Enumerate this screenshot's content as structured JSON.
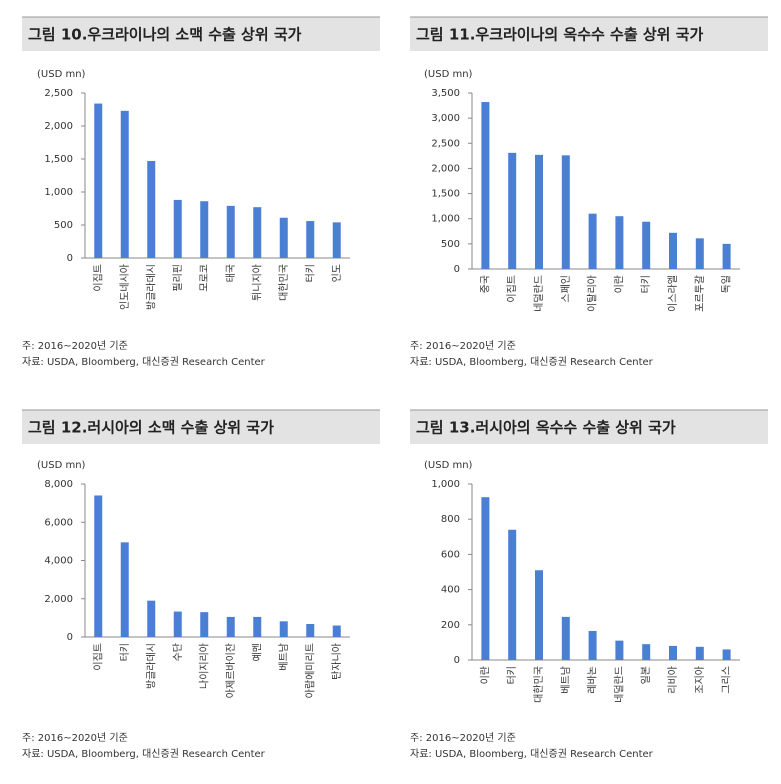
{
  "chart_data": [
    {
      "type": "bar",
      "title": "그림 10.우크라이나의 소맥 수출 상위 국가",
      "y_label": "(USD mn)",
      "categories": [
        "이집트",
        "인도네시아",
        "방글라데시",
        "필리핀",
        "모로코",
        "태국",
        "튀니지아",
        "대한민국",
        "터키",
        "인도"
      ],
      "values": [
        2340,
        2230,
        1470,
        880,
        860,
        790,
        770,
        610,
        560,
        540
      ],
      "color": "#4a7fd3",
      "ylim": [
        0,
        2500
      ],
      "yticks": [
        0,
        500,
        {
          "value": 1000,
          "label": "1,000"
        },
        {
          "value": 1500,
          "label": "1,500"
        },
        {
          "value": 2000,
          "label": "2,000"
        },
        {
          "value": 2500,
          "label": "2,500"
        }
      ],
      "note": "주: 2016~2020년 기준",
      "source": "자료: USDA, Bloomberg, 대신증권 Research Center"
    },
    {
      "type": "bar",
      "title": "그림 11.우크라이나의 옥수수 수출 상위 국가",
      "y_label": "(USD mn)",
      "categories": [
        "중국",
        "이집트",
        "네덜란드",
        "스페인",
        "이탈리아",
        "이란",
        "터키",
        "이스라엘",
        "포르투갈",
        "독일"
      ],
      "values": [
        3320,
        2310,
        2270,
        2260,
        1100,
        1050,
        940,
        720,
        610,
        500
      ],
      "color": "#4a7fd3",
      "ylim": [
        0,
        3500
      ],
      "yticks": [
        0,
        500,
        {
          "value": 1000,
          "label": "1,000"
        },
        {
          "value": 1500,
          "label": "1,500"
        },
        {
          "value": 2000,
          "label": "2,000"
        },
        {
          "value": 2500,
          "label": "2,500"
        },
        {
          "value": 3000,
          "label": "3,000"
        },
        {
          "value": 3500,
          "label": "3,500"
        }
      ],
      "note": "주: 2016~2020년 기준",
      "source": "자료: USDA, Bloomberg, 대신증권 Research Center"
    },
    {
      "type": "bar",
      "title": "그림 12.러시아의 소맥 수출 상위 국가",
      "y_label": "(USD mn)",
      "categories": [
        "이집트",
        "터키",
        "방글라데시",
        "수단",
        "나이지리아",
        "아제르바이잔",
        "예멘",
        "베트남",
        "아랍에미리트",
        "탄자니아"
      ],
      "values": [
        7400,
        4950,
        1900,
        1330,
        1300,
        1050,
        1050,
        820,
        680,
        600
      ],
      "color": "#4a7fd3",
      "ylim": [
        0,
        8000
      ],
      "yticks": [
        0,
        {
          "value": 2000,
          "label": "2,000"
        },
        {
          "value": 4000,
          "label": "4,000"
        },
        {
          "value": 6000,
          "label": "6,000"
        },
        {
          "value": 8000,
          "label": "8,000"
        }
      ],
      "note": "주: 2016~2020년 기준",
      "source": "자료: USDA, Bloomberg, 대신증권 Research Center"
    },
    {
      "type": "bar",
      "title": "그림 13.러시아의 옥수수 수출 상위 국가",
      "y_label": "(USD mn)",
      "categories": [
        "이란",
        "터키",
        "대한민국",
        "베트남",
        "레바논",
        "네덜란드",
        "일본",
        "리비아",
        "조지아",
        "그리스"
      ],
      "values": [
        925,
        740,
        510,
        245,
        165,
        110,
        90,
        80,
        75,
        60
      ],
      "color": "#4a7fd3",
      "ylim": [
        0,
        1000
      ],
      "yticks": [
        0,
        200,
        400,
        600,
        800,
        {
          "value": 1000,
          "label": "1,000"
        }
      ],
      "note": "주: 2016~2020년 기준",
      "source": "자료: USDA, Bloomberg, 대신증권 Research Center"
    }
  ]
}
